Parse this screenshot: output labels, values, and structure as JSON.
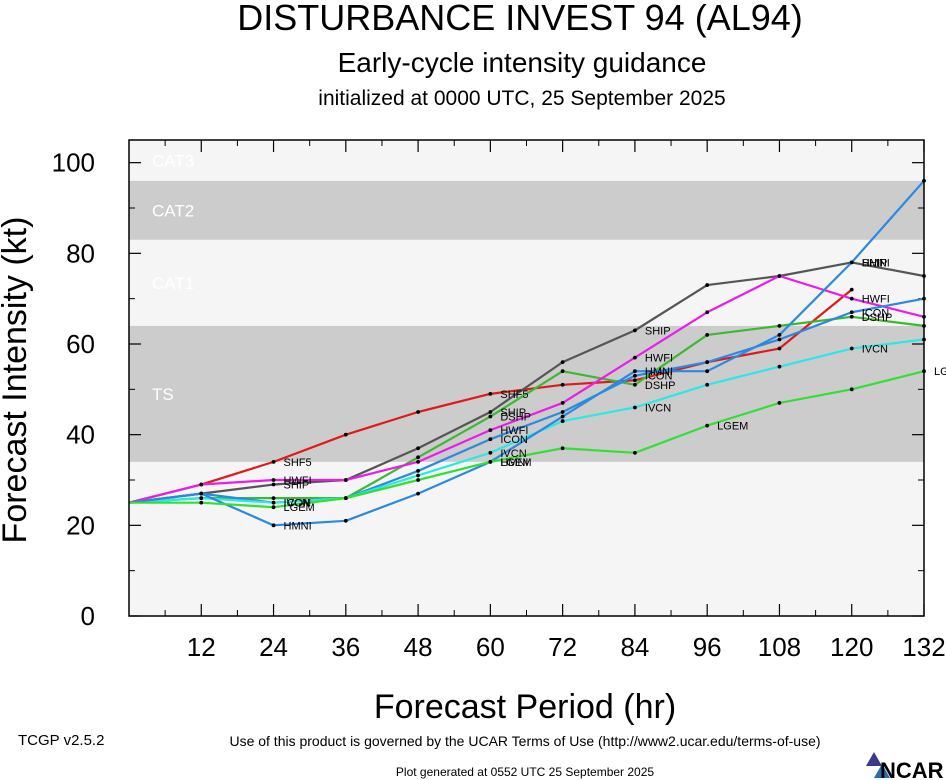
{
  "chart_data": {
    "type": "line",
    "title": "DISTURBANCE INVEST 94 (AL94)",
    "subtitle": "Early-cycle intensity guidance",
    "subsubtitle": "initialized at 0000 UTC, 25 September 2025",
    "xlabel": "Forecast Period (hr)",
    "ylabel": "Forecast Intensity (kt)",
    "xlim": [
      0,
      132
    ],
    "ylim": [
      0,
      105
    ],
    "xticks": [
      12,
      24,
      36,
      48,
      60,
      72,
      84,
      96,
      108,
      120,
      132
    ],
    "yticks": [
      0,
      20,
      40,
      60,
      80,
      100
    ],
    "bands": [
      {
        "label": "TS",
        "from": 34,
        "to": 64,
        "color": "#cccccc"
      },
      {
        "label": "CAT1",
        "from": 64,
        "to": 83,
        "color": "#f5f5f5"
      },
      {
        "label": "CAT2",
        "from": 83,
        "to": 96,
        "color": "#cccccc"
      },
      {
        "label": "CAT3",
        "from": 96,
        "to": 105,
        "color": "#f5f5f5"
      }
    ],
    "series": [
      {
        "name": "SHF5",
        "color": "#e01a1a",
        "x": [
          0,
          12,
          24,
          36,
          48,
          60,
          72,
          84,
          96,
          108,
          120
        ],
        "values": [
          25,
          29,
          34,
          40,
          45,
          49,
          51,
          52,
          56,
          59,
          72
        ],
        "label_at": [
          24,
          60
        ]
      },
      {
        "name": "SHIP",
        "color": "#555555",
        "x": [
          0,
          12,
          24,
          36,
          48,
          60,
          72,
          84,
          96,
          108,
          120,
          132
        ],
        "values": [
          25,
          27,
          29,
          30,
          37,
          45,
          56,
          63,
          73,
          75,
          78,
          75
        ],
        "label_at": [
          24,
          60,
          84,
          120
        ]
      },
      {
        "name": "DSHP",
        "color": "#3cb832",
        "x": [
          0,
          12,
          24,
          36,
          48,
          60,
          72,
          84,
          96,
          108,
          120,
          132
        ],
        "values": [
          25,
          26,
          26,
          26,
          35,
          44,
          54,
          51,
          62,
          64,
          66,
          64
        ],
        "label_at": [
          60,
          84,
          120
        ]
      },
      {
        "name": "HWFI",
        "color": "#e81ee8",
        "x": [
          0,
          12,
          24,
          36,
          48,
          60,
          72,
          84,
          96,
          108,
          120,
          132
        ],
        "values": [
          25,
          29,
          30,
          30,
          34,
          41,
          47,
          57,
          67,
          75,
          70,
          66
        ],
        "label_at": [
          24,
          60,
          84,
          120
        ]
      },
      {
        "name": "ICON",
        "color": "#2a8ae0",
        "x": [
          0,
          12,
          24,
          36,
          48,
          60,
          72,
          84,
          96,
          108,
          120,
          132
        ],
        "values": [
          25,
          27,
          25,
          26,
          32,
          39,
          45,
          53,
          56,
          61,
          67,
          70
        ],
        "label_at": [
          24,
          60,
          84,
          120
        ]
      },
      {
        "name": "IVCN",
        "color": "#2ae8e8",
        "x": [
          0,
          12,
          24,
          36,
          48,
          60,
          72,
          84,
          96,
          108,
          120,
          132
        ],
        "values": [
          25,
          26,
          25,
          26,
          31,
          36,
          43,
          46,
          51,
          55,
          59,
          61
        ],
        "label_at": [
          24,
          60,
          84,
          120
        ]
      },
      {
        "name": "HMNI",
        "color": "#2a8ae0",
        "x": [
          0,
          12,
          24,
          36,
          48,
          60,
          72,
          84,
          96,
          108,
          120,
          132
        ],
        "values": [
          25,
          27,
          20,
          21,
          27,
          34,
          44,
          54,
          54,
          62,
          78,
          96
        ],
        "label_at": [
          24,
          60,
          84,
          120
        ]
      },
      {
        "name": "LGEM",
        "color": "#32e032",
        "x": [
          0,
          12,
          24,
          36,
          48,
          60,
          72,
          84,
          96,
          108,
          120,
          132
        ],
        "values": [
          25,
          25,
          24,
          26,
          30,
          34,
          37,
          36,
          42,
          47,
          50,
          54
        ],
        "label_at": [
          24,
          60,
          96,
          132
        ]
      }
    ]
  },
  "footer": {
    "version": "TCGP v2.5.2",
    "terms": "Use of this product is governed by the UCAR Terms of Use (http://www2.ucar.edu/terms-of-use)",
    "generated": "Plot generated at 0552 UTC   25 September 2025",
    "logo_text": "NCAR"
  }
}
